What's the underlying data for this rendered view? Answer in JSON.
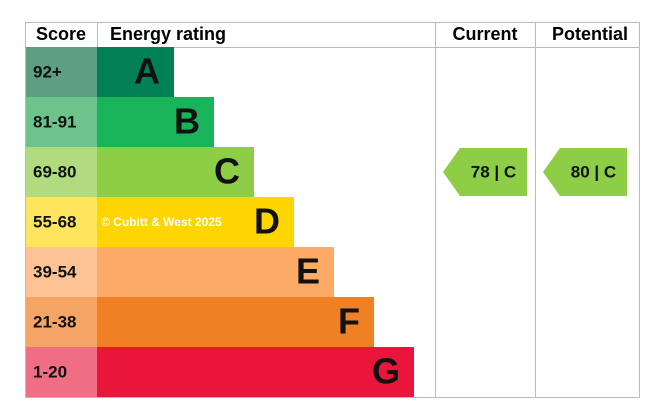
{
  "header": {
    "score": "Score",
    "rating": "Energy rating",
    "current": "Current",
    "potential": "Potential"
  },
  "rows": [
    {
      "score": "92+",
      "letter": "A",
      "color": "#008054",
      "light": "#5e9e82"
    },
    {
      "score": "81-91",
      "letter": "B",
      "color": "#19b459",
      "light": "#6cc48c"
    },
    {
      "score": "69-80",
      "letter": "C",
      "color": "#8dce46",
      "light": "#b0dc7f"
    },
    {
      "score": "55-68",
      "letter": "D",
      "color": "#ffd500",
      "light": "#ffe45e"
    },
    {
      "score": "39-54",
      "letter": "E",
      "color": "#fcaa65",
      "light": "#fdc395"
    },
    {
      "score": "21-38",
      "letter": "F",
      "color": "#ef8023",
      "light": "#f4a465"
    },
    {
      "score": "1-20",
      "letter": "G",
      "color": "#e9153b",
      "light": "#ef6e84"
    }
  ],
  "current": {
    "label": "78 | C",
    "row": 2
  },
  "potential": {
    "label": "80 | C",
    "row": 2
  },
  "watermark": "© Cubitt & West 2025"
}
